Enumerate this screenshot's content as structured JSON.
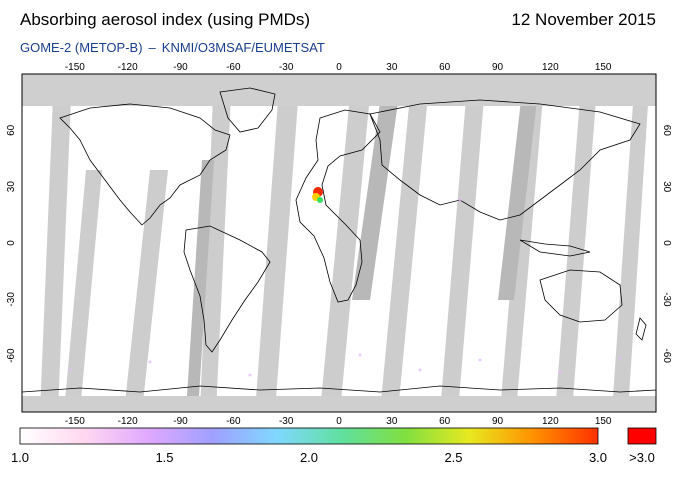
{
  "header": {
    "title": "Absorbing aerosol index (using PMDs)",
    "date": "12 November 2015",
    "instrument": "GOME-2 (METOP-B)",
    "separator": "–",
    "provider": "KNMI/O3MSAF/EUMETSAT"
  },
  "map": {
    "projection": "equirectangular",
    "lon_ticks": [
      "-150",
      "-120",
      "-90",
      "-60",
      "-30",
      "0",
      "30",
      "60",
      "90",
      "120",
      "150"
    ],
    "lat_ticks": [
      "60",
      "30",
      "0",
      "-30",
      "-60"
    ],
    "colors": {
      "no_data": "#d6d6d6",
      "polar_gap": "#cfcfcf",
      "land_outline": "#000000",
      "background": "#ffffff"
    },
    "hotspot_label_colors": [
      "#ff2a00",
      "#ffd000",
      "#36e060"
    ]
  },
  "colorbar": {
    "labels": [
      "1.0",
      "1.5",
      "2.0",
      "2.5",
      "3.0"
    ],
    "overflow_label": ">3.0",
    "overflow_color": "#ff0000",
    "gradient": [
      "#ffffff",
      "#ffd8f0",
      "#e0a8ff",
      "#a0a0ff",
      "#80d8ff",
      "#60e0a0",
      "#80e040",
      "#e8e820",
      "#ff9000",
      "#ff3000"
    ]
  }
}
